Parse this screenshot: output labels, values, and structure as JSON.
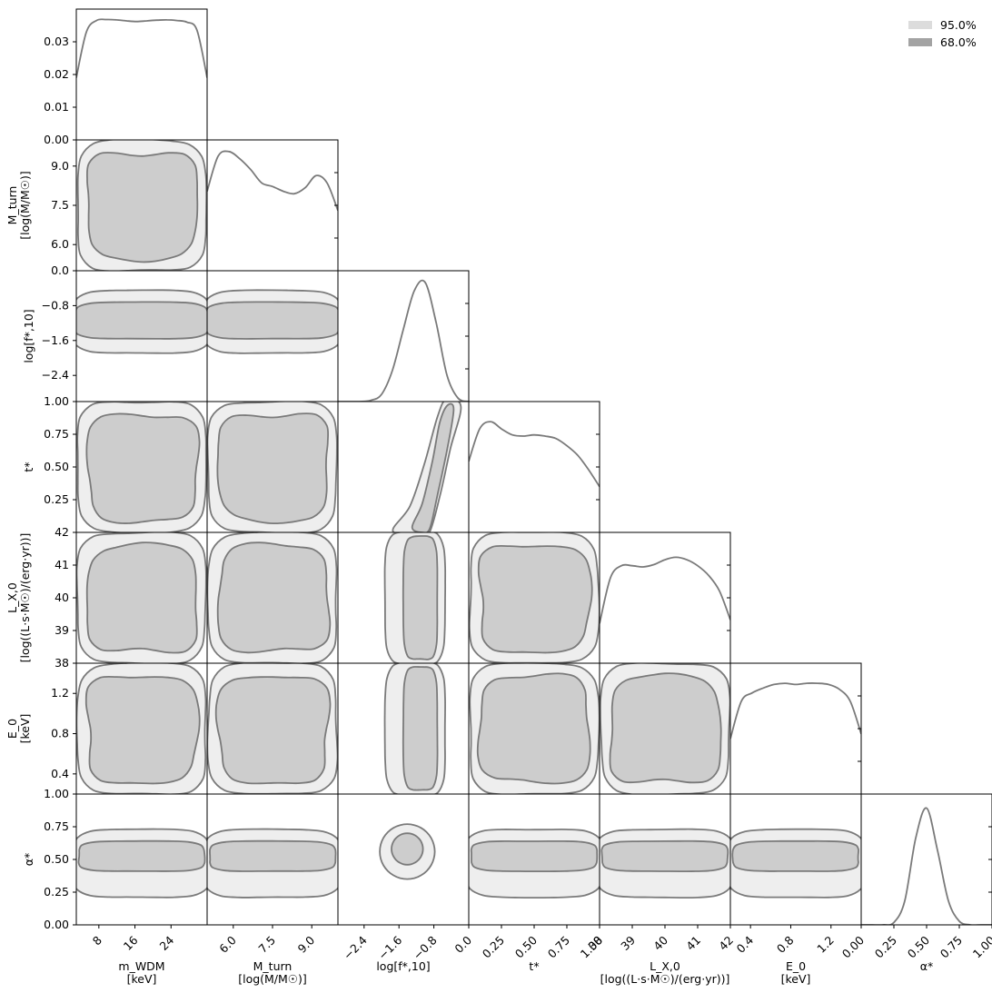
{
  "chart_data": {
    "type": "corner",
    "params": [
      {
        "ticks": [
          8,
          16,
          24
        ],
        "tick_labels": [
          "8",
          "16",
          "24"
        ],
        "range": [
          3,
          32
        ],
        "label_lines": [
          "m_WDM",
          "[keV]"
        ]
      },
      {
        "ticks": [
          6.0,
          7.5,
          9.0
        ],
        "tick_labels": [
          "6.0",
          "7.5",
          "9.0"
        ],
        "range": [
          5.0,
          10.0
        ],
        "label_lines": [
          "M_turn",
          "[log(M/M☉)]"
        ]
      },
      {
        "ticks": [
          -2.4,
          -1.6,
          -0.8,
          0.0
        ],
        "tick_labels": [
          "−2.4",
          "−1.6",
          "−0.8",
          "0.0"
        ],
        "range": [
          -3.0,
          0.0
        ],
        "label_lines": [
          "log[f*,10]"
        ]
      },
      {
        "ticks": [
          0.25,
          0.5,
          0.75,
          1.0
        ],
        "tick_labels": [
          "0.25",
          "0.50",
          "0.75",
          "1.00"
        ],
        "range": [
          0.0,
          1.0
        ],
        "label_lines": [
          "t*"
        ]
      },
      {
        "ticks": [
          38,
          39,
          40,
          41,
          42
        ],
        "tick_labels": [
          "38",
          "39",
          "40",
          "41",
          "42"
        ],
        "range": [
          38,
          42
        ],
        "label_lines": [
          "L_X,0",
          "[log((L·s·M☉)/(erg·yr))]"
        ]
      },
      {
        "ticks": [
          0.4,
          0.8,
          1.2
        ],
        "tick_labels": [
          "0.4",
          "0.8",
          "1.2"
        ],
        "range": [
          0.2,
          1.5
        ],
        "label_lines": [
          "E_0",
          "[keV]"
        ]
      },
      {
        "ticks": [
          0.0,
          0.25,
          0.5,
          0.75,
          1.0
        ],
        "tick_labels": [
          "0.00",
          "0.25",
          "0.50",
          "0.75",
          "1.00"
        ],
        "range": [
          0.0,
          1.0
        ],
        "label_lines": [
          "α*"
        ]
      }
    ],
    "first_marginal_yticks": {
      "ticks": [
        0.0,
        0.01,
        0.02,
        0.03
      ],
      "labels": [
        "0.00",
        "0.01",
        "0.02",
        "0.03"
      ],
      "range": [
        0.0,
        0.04
      ]
    },
    "marginals": [
      [
        0.019,
        0.033,
        0.0365,
        0.0368,
        0.0367,
        0.0364,
        0.0362,
        0.0364,
        0.0366,
        0.0367,
        0.0365,
        0.036,
        0.0335,
        0.019
      ],
      [
        0.66,
        0.95,
        0.99,
        0.93,
        0.84,
        0.73,
        0.7,
        0.66,
        0.64,
        0.69,
        0.79,
        0.73,
        0.5
      ],
      [
        0.0,
        0.0,
        0.0,
        0.01,
        0.06,
        0.26,
        0.6,
        0.92,
        0.99,
        0.66,
        0.22,
        0.03,
        0.0
      ],
      [
        0.59,
        0.86,
        0.92,
        0.86,
        0.81,
        0.8,
        0.81,
        0.8,
        0.78,
        0.72,
        0.64,
        0.52,
        0.38
      ],
      [
        0.33,
        0.71,
        0.81,
        0.81,
        0.8,
        0.82,
        0.86,
        0.88,
        0.86,
        0.81,
        0.73,
        0.6,
        0.36
      ],
      [
        0.46,
        0.77,
        0.84,
        0.88,
        0.91,
        0.92,
        0.91,
        0.92,
        0.92,
        0.91,
        0.87,
        0.77,
        0.5
      ],
      [
        0.0,
        0.0,
        0.0,
        0.02,
        0.2,
        0.72,
        0.97,
        0.62,
        0.2,
        0.03,
        0.0,
        0.0,
        0.0
      ]
    ],
    "contour_levels": [
      "95.0%",
      "68.0%"
    ],
    "legend": {
      "position": "top-right",
      "labels": [
        "95.0%",
        "68.0%"
      ]
    },
    "colors": {
      "c95_fill": "#eeeeee",
      "c68_fill": "#cdcdcd",
      "line": "#7a7a7a",
      "legend95": "#dcdcdc",
      "legend68": "#a3a3a3"
    }
  }
}
